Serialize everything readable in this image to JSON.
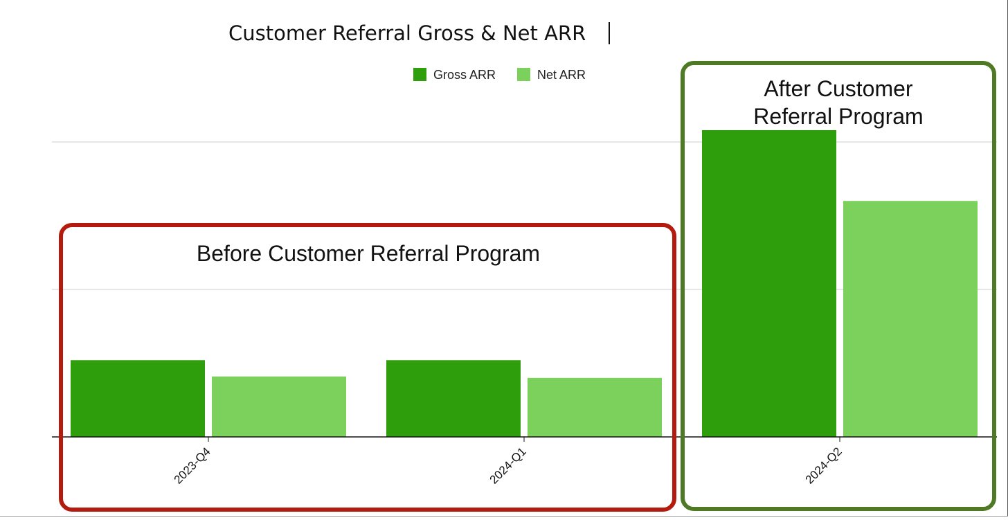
{
  "chart_data": {
    "type": "bar",
    "title": "Customer Referral Gross & Net ARR",
    "categories": [
      "2023-Q4",
      "2024-Q1",
      "2024-Q2"
    ],
    "series": [
      {
        "name": "Gross ARR",
        "values": [
          0.52,
          0.52,
          2.08
        ]
      },
      {
        "name": "Net ARR",
        "values": [
          0.41,
          0.4,
          1.6
        ]
      }
    ],
    "ylim": [
      0,
      2.5
    ],
    "gridlines": [
      1,
      2
    ],
    "legend_position": "top",
    "grid": true,
    "annotations": [
      {
        "text": "Before Customer Referral Program",
        "categories": [
          "2023-Q4",
          "2024-Q1"
        ],
        "color": "#b31b0e"
      },
      {
        "text": "After Customer Referral Program",
        "categories": [
          "2024-Q2"
        ],
        "color": "#4e7a26"
      }
    ]
  },
  "colors": {
    "gross": "#2e9e0c",
    "net": "#7bd15c",
    "grid": "#cccccc",
    "axis": "#111111",
    "text": "#111111"
  }
}
